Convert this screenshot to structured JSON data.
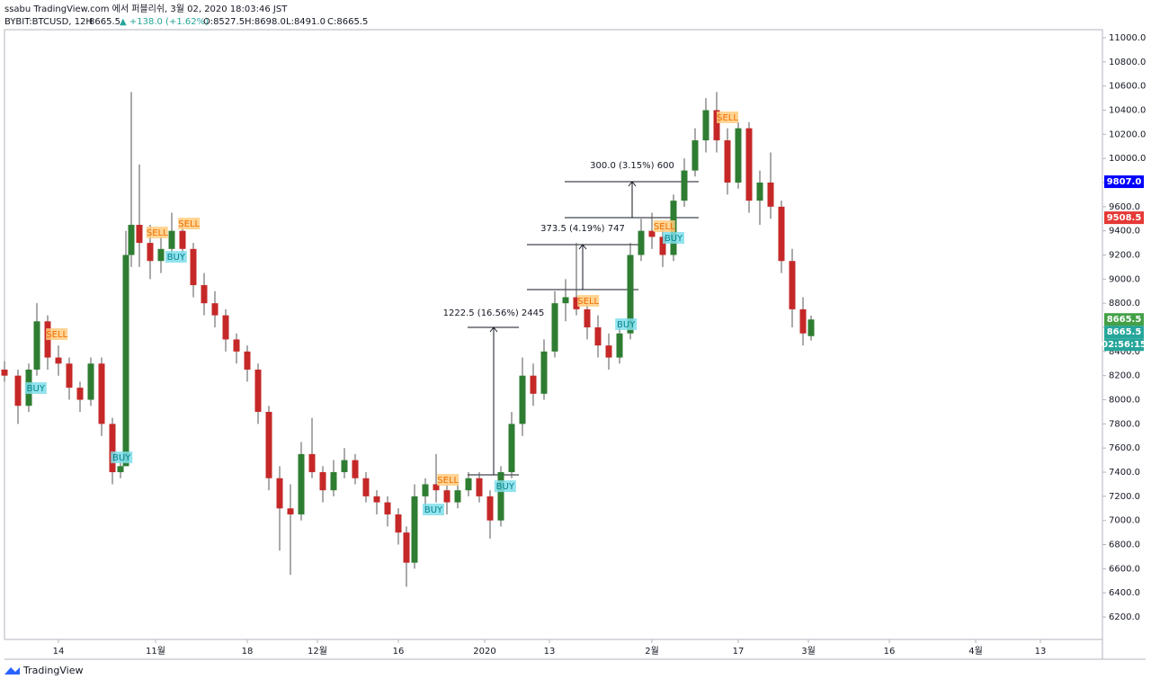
{
  "header": {
    "publisher": "ssabu TradingView.com 에서 퍼블리쉬, 3월 02, 2020 18:03:46 JST",
    "symbol": "BYBIT:BTCUSD, 12H",
    "last": "8665.5",
    "change": "▲ +138.0 (+1.62%)",
    "open": "O:8527.5",
    "high": "H:8698.0",
    "low": "L:8491.0",
    "close": "C:8665.5"
  },
  "footer": "TradingView",
  "chart_data": {
    "type": "candlestick",
    "up_color": "#2e7d32",
    "down_color": "#c62828",
    "xlim": [
      3,
      206.5
    ],
    "ylim": [
      6014,
      11067
    ],
    "xticks": [
      {
        "value": 13,
        "label": "14"
      },
      {
        "value": 31,
        "label": "11월"
      },
      {
        "value": 48,
        "label": "18"
      },
      {
        "value": 61,
        "label": "12월"
      },
      {
        "value": 76,
        "label": "16"
      },
      {
        "value": 92,
        "label": "2020"
      },
      {
        "value": 104,
        "label": "13"
      },
      {
        "value": 123,
        "label": "2월"
      },
      {
        "value": 139,
        "label": "17"
      },
      {
        "value": 152,
        "label": "3월"
      },
      {
        "value": 167,
        "label": "16"
      },
      {
        "value": 183,
        "label": "4월"
      },
      {
        "value": 195,
        "label": "13"
      }
    ],
    "yticks": [
      {
        "value": 6200,
        "label": "6200.0"
      },
      {
        "value": 6400,
        "label": "6400.0"
      },
      {
        "value": 6600,
        "label": "6600.0"
      },
      {
        "value": 6800,
        "label": "6800.0"
      },
      {
        "value": 7000,
        "label": "7000.0"
      },
      {
        "value": 7200,
        "label": "7200.0"
      },
      {
        "value": 7400,
        "label": "7400.0"
      },
      {
        "value": 7600,
        "label": "7600.0"
      },
      {
        "value": 7800,
        "label": "7800.0"
      },
      {
        "value": 8000,
        "label": "8000.0"
      },
      {
        "value": 8200,
        "label": "8200.0"
      },
      {
        "value": 8400,
        "label": "8400.0"
      },
      {
        "value": 8600,
        "label": "8600.0"
      },
      {
        "value": 8800,
        "label": "8800.0"
      },
      {
        "value": 9000,
        "label": "9000.0"
      },
      {
        "value": 9200,
        "label": "9200.0"
      },
      {
        "value": 9400,
        "label": "9400.0"
      },
      {
        "value": 9600,
        "label": "9600.0"
      },
      {
        "value": 9800,
        "label": "9800.0"
      },
      {
        "value": 10000,
        "label": "10000.0"
      },
      {
        "value": 10200,
        "label": "10200.0"
      },
      {
        "value": 10400,
        "label": "10400.0"
      },
      {
        "value": 10600,
        "label": "10600.0"
      },
      {
        "value": 10800,
        "label": "10800.0"
      },
      {
        "value": 11000,
        "label": "11000.0"
      }
    ],
    "x": [
      3,
      5.5,
      7.5,
      9,
      11,
      13,
      15,
      17,
      19,
      21,
      23,
      24.5,
      25.5,
      26.5,
      28,
      30,
      32,
      34,
      36,
      38,
      40,
      42,
      44,
      46,
      48,
      50,
      52,
      54,
      56,
      58,
      60,
      62,
      64,
      66,
      68,
      70,
      72,
      74,
      76,
      77.5,
      79,
      81,
      83,
      85,
      87,
      89,
      91,
      93,
      95,
      97,
      99,
      101,
      103,
      105,
      107,
      109,
      111,
      113,
      115,
      117,
      119,
      121,
      123,
      125,
      127,
      129,
      131,
      133,
      135,
      137,
      139,
      141,
      143,
      145,
      147,
      149,
      151,
      152.5
    ],
    "open": [
      8250,
      8200,
      7950,
      8250,
      8650,
      8350,
      8300,
      8100,
      8000,
      8300,
      7800,
      7400,
      7450,
      9200,
      9450,
      9300,
      9150,
      9250,
      9400,
      9250,
      8950,
      8800,
      8700,
      8500,
      8400,
      8250,
      7900,
      7350,
      7100,
      7050,
      7550,
      7400,
      7250,
      7400,
      7500,
      7350,
      7200,
      7150,
      7050,
      6900,
      6650,
      7200,
      7300,
      7250,
      7150,
      7250,
      7350,
      7200,
      7000,
      7400,
      7800,
      8200,
      8050,
      8400,
      8800,
      8850,
      8750,
      8600,
      8450,
      8350,
      8550,
      9200,
      9400,
      9350,
      9200,
      9650,
      9900,
      10150,
      10400,
      10150,
      9800,
      10250,
      9650,
      9800,
      9600,
      9150,
      8750,
      8527.5
    ],
    "high": [
      8320,
      8250,
      8300,
      8800,
      8700,
      8450,
      8350,
      8150,
      8350,
      8350,
      7850,
      7550,
      9400,
      10550,
      9950,
      9450,
      9350,
      9550,
      9450,
      9300,
      9050,
      8900,
      8750,
      8550,
      8450,
      8300,
      7950,
      7450,
      7300,
      7650,
      7850,
      7450,
      7500,
      7600,
      7550,
      7400,
      7250,
      7200,
      7100,
      6950,
      7300,
      7350,
      7550,
      7300,
      7300,
      7400,
      7400,
      7250,
      7450,
      7900,
      8350,
      8300,
      8500,
      8900,
      9000,
      9300,
      8800,
      8700,
      8550,
      8600,
      9300,
      9500,
      9550,
      9450,
      9700,
      10000,
      10250,
      10500,
      10550,
      10250,
      10300,
      10300,
      9900,
      10050,
      9650,
      9250,
      8850,
      8698
    ],
    "low": [
      8150,
      7800,
      7900,
      8200,
      8250,
      8200,
      8000,
      7900,
      7950,
      7700,
      7300,
      7350,
      7450,
      9100,
      9100,
      9000,
      9050,
      9200,
      9150,
      8850,
      8700,
      8600,
      8400,
      8300,
      8150,
      7800,
      7250,
      6750,
      6550,
      7000,
      7350,
      7150,
      7200,
      7350,
      7300,
      7150,
      7050,
      6950,
      6800,
      6450,
      6600,
      7100,
      7150,
      7050,
      7100,
      7200,
      7150,
      6850,
      6950,
      7350,
      7700,
      7950,
      8000,
      8350,
      8650,
      8700,
      8500,
      8350,
      8250,
      8300,
      8500,
      9150,
      9250,
      9100,
      9150,
      9600,
      9850,
      10050,
      10050,
      9700,
      9750,
      9550,
      9450,
      9500,
      9050,
      8600,
      8450,
      8491
    ],
    "close": [
      8200,
      7950,
      8250,
      8650,
      8350,
      8300,
      8100,
      8000,
      8300,
      7800,
      7400,
      7450,
      9200,
      9450,
      9300,
      9150,
      9250,
      9400,
      9250,
      8950,
      8800,
      8700,
      8500,
      8400,
      8250,
      7900,
      7350,
      7100,
      7050,
      7550,
      7400,
      7250,
      7400,
      7500,
      7350,
      7200,
      7150,
      7050,
      6900,
      6650,
      7200,
      7300,
      7250,
      7150,
      7250,
      7350,
      7200,
      7000,
      7400,
      7800,
      8200,
      8050,
      8400,
      8800,
      8850,
      8750,
      8600,
      8450,
      8350,
      8550,
      9200,
      9400,
      9350,
      9200,
      9650,
      9900,
      10150,
      10400,
      10150,
      9800,
      10250,
      9650,
      9800,
      9600,
      9150,
      8750,
      8550,
      8665.5
    ],
    "signals": [
      {
        "label": "BUY",
        "x": 8.8,
        "price": 8093
      },
      {
        "label": "SELL",
        "x": 12.7,
        "price": 8540
      },
      {
        "label": "BUY",
        "x": 24.7,
        "price": 7519
      },
      {
        "label": "SELL",
        "x": 31.3,
        "price": 9383
      },
      {
        "label": "BUY",
        "x": 34.8,
        "price": 9181
      },
      {
        "label": "SELL",
        "x": 37.2,
        "price": 9457
      },
      {
        "label": "BUY",
        "x": 82.5,
        "price": 7087
      },
      {
        "label": "SELL",
        "x": 85.2,
        "price": 7333
      },
      {
        "label": "BUY",
        "x": 95.8,
        "price": 7280
      },
      {
        "label": "SELL",
        "x": 111.2,
        "price": 8816
      },
      {
        "label": "BUY",
        "x": 118.2,
        "price": 8622
      },
      {
        "label": "SELL",
        "x": 125.3,
        "price": 9435
      },
      {
        "label": "BUY",
        "x": 127,
        "price": 9338
      },
      {
        "label": "SELL",
        "x": 137,
        "price": 10337
      }
    ],
    "measures": [
      "1222.5 (16.56%) 2445",
      "373.5 (4.19%) 747",
      "300.0 (3.15%) 600"
    ],
    "price_labels": [
      {
        "value": 9807,
        "label": "9807.0",
        "color": "#0000ff"
      },
      {
        "value": 9508.5,
        "label": "9508.5",
        "color": "#e53935"
      },
      {
        "value": 8665.5,
        "label": "8665.5",
        "color": "#43a047"
      }
    ],
    "last_price_label": "8665.5",
    "countdown": "02:56:15"
  }
}
